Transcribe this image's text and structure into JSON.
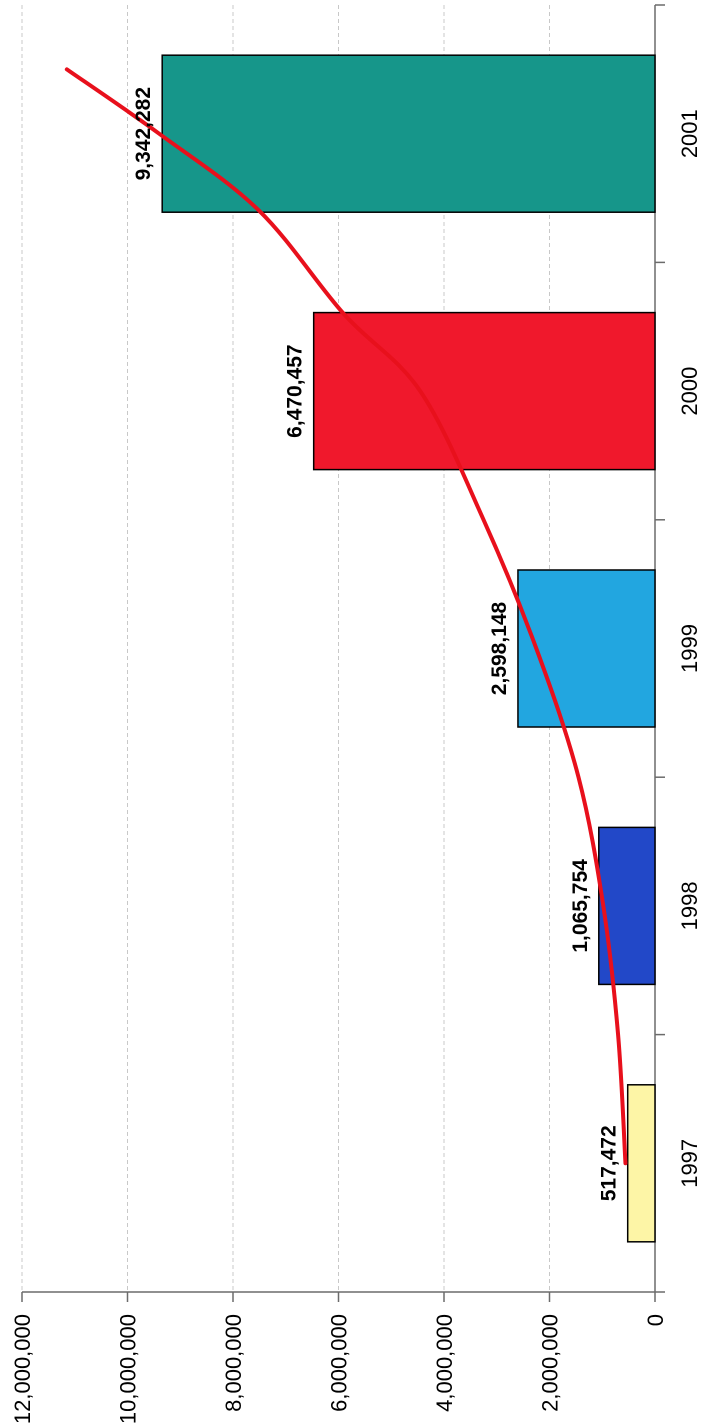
{
  "chart_data": {
    "type": "bar",
    "orientation": "rotated-90-clockwise",
    "title": "",
    "xlabel": "",
    "ylabel": "",
    "categories": [
      "1997",
      "1998",
      "1999",
      "2000",
      "2001"
    ],
    "values": [
      517472,
      1065754,
      2598148,
      6470457,
      9342282
    ],
    "data_labels": [
      "517,472",
      "1,065,754",
      "2,598,148",
      "6,470,457",
      "9,342,282"
    ],
    "bar_colors": [
      "#fdf5a6",
      "#2248c8",
      "#22a6e0",
      "#f0182c",
      "#16968a"
    ],
    "ylim": [
      0,
      12000000
    ],
    "yticks": [
      0,
      2000000,
      4000000,
      6000000,
      8000000,
      10000000,
      12000000
    ],
    "ytick_labels": [
      "0",
      "2,000,000",
      "4,000,000",
      "6,000,000",
      "8,000,000",
      "10,000,000",
      "12,000,000"
    ],
    "grid": true,
    "legend": "none",
    "trendline": {
      "color": "#e8101c",
      "points": [
        {
          "x": 0.0,
          "y": 560000
        },
        {
          "x": 0.5,
          "y": 700000
        },
        {
          "x": 1.0,
          "y": 980000
        },
        {
          "x": 1.5,
          "y": 1450000
        },
        {
          "x": 2.0,
          "y": 2250000
        },
        {
          "x": 2.5,
          "y": 3250000
        },
        {
          "x": 3.0,
          "y": 4450000
        },
        {
          "x": 3.3,
          "y": 5900000
        },
        {
          "x": 3.7,
          "y": 7500000
        },
        {
          "x": 4.0,
          "y": 9400000
        },
        {
          "x": 4.25,
          "y": 11150000
        }
      ]
    }
  }
}
